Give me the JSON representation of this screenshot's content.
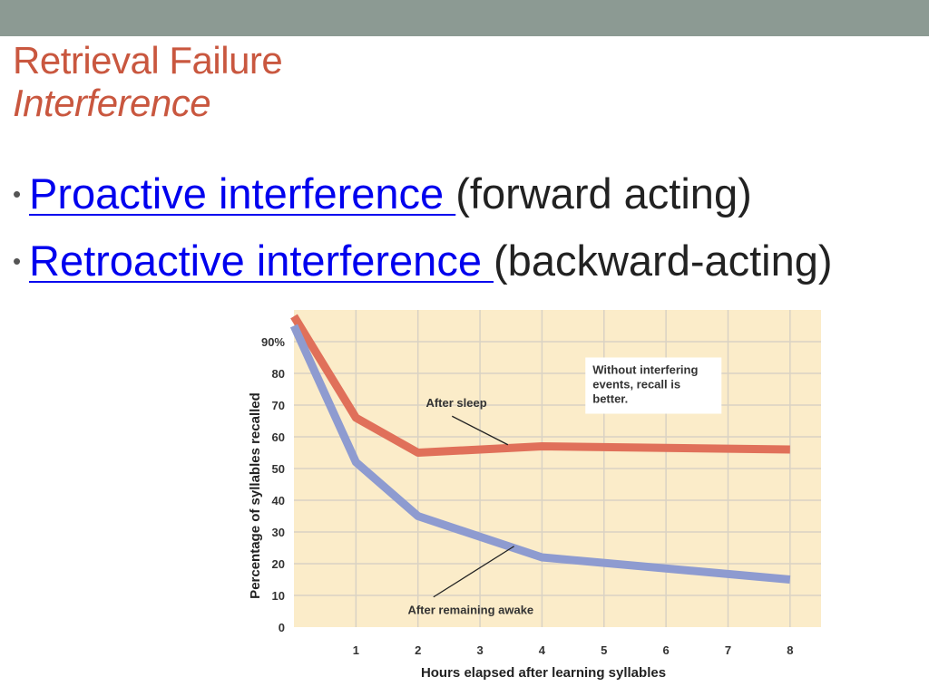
{
  "slide": {
    "title": "Retrieval Failure",
    "subtitle": "Interference",
    "bullets": [
      {
        "link": "Proactive interference ",
        "rest": "(forward acting)"
      },
      {
        "link": "Retroactive interference ",
        "rest": "(backward-acting)"
      }
    ]
  },
  "colors": {
    "top_band": "#8c9a93",
    "title": "#c9573f",
    "link": "#0000ee",
    "plot_bg": "#fbecc9",
    "grid": "#d9d2c4",
    "sleep_line": "#e0705a",
    "awake_line": "#8e9bd0"
  },
  "chart_data": {
    "type": "line",
    "title": "",
    "xlabel": "Hours elapsed after learning syllables",
    "ylabel": "Percentage of syllables recalled",
    "xlim": [
      0,
      8.5
    ],
    "ylim": [
      0,
      100
    ],
    "x_ticks": [
      1,
      2,
      3,
      4,
      5,
      6,
      7,
      8
    ],
    "y_ticks": [
      0,
      10,
      20,
      30,
      40,
      50,
      60,
      70,
      80,
      90
    ],
    "y_tick_labels": [
      "0",
      "10",
      "20",
      "30",
      "40",
      "50",
      "60",
      "70",
      "80",
      "90%"
    ],
    "grid": true,
    "series": [
      {
        "name": "After sleep",
        "x": [
          0,
          1,
          2,
          4,
          8
        ],
        "values": [
          98,
          66,
          55,
          57,
          56
        ]
      },
      {
        "name": "After remaining awake",
        "x": [
          0,
          1,
          2,
          4,
          8
        ],
        "values": [
          95,
          52,
          35,
          22,
          15
        ]
      }
    ],
    "annotations": {
      "callout": "Without interfering events, recall is better.",
      "sleep_label": "After sleep",
      "awake_label": "After remaining awake"
    }
  }
}
